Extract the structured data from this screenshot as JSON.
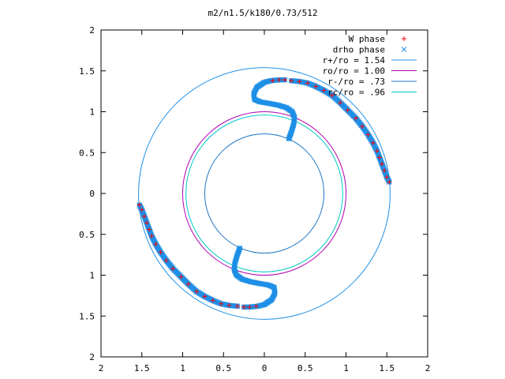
{
  "chart_data": {
    "type": "scatter",
    "title": "m2/n1.5/k180/0.73/512",
    "xlim": [
      -2,
      2
    ],
    "ylim": [
      -2,
      2
    ],
    "xticks": [
      "2",
      "1.5",
      "1",
      "0.5",
      "0",
      "0.5",
      "1",
      "1.5",
      "2"
    ],
    "xtick_values": [
      -2,
      -1.5,
      -1,
      -0.5,
      0,
      0.5,
      1,
      1.5,
      2
    ],
    "yticks": [
      "2",
      "1.5",
      "1",
      "0.5",
      "0",
      "0.5",
      "1",
      "1.5",
      "2"
    ],
    "ytick_values": [
      2,
      1.5,
      1,
      0.5,
      0,
      -0.5,
      -1,
      -1.5,
      -2
    ],
    "grid": false,
    "legend_position": "top-right",
    "series": [
      {
        "name": "W phase",
        "kind": "points",
        "marker": "+",
        "color": "#ff0000",
        "points": [
          [
            1.53,
            0.14
          ],
          [
            1.5,
            0.2
          ],
          [
            1.47,
            0.28
          ],
          [
            1.44,
            0.36
          ],
          [
            1.41,
            0.44
          ],
          [
            1.38,
            0.52
          ],
          [
            1.33,
            0.62
          ],
          [
            1.27,
            0.72
          ],
          [
            1.2,
            0.82
          ],
          [
            1.12,
            0.92
          ],
          [
            1.02,
            1.02
          ],
          [
            0.93,
            1.11
          ],
          [
            0.83,
            1.2
          ],
          [
            0.73,
            1.26
          ],
          [
            0.63,
            1.31
          ],
          [
            0.53,
            1.35
          ],
          [
            0.43,
            1.37
          ],
          [
            0.33,
            1.38
          ],
          [
            0.25,
            1.39
          ],
          [
            0.18,
            1.39
          ],
          [
            0.1,
            1.38
          ],
          [
            -1.53,
            -0.14
          ],
          [
            -1.5,
            -0.2
          ],
          [
            -1.47,
            -0.28
          ],
          [
            -1.44,
            -0.36
          ],
          [
            -1.41,
            -0.44
          ],
          [
            -1.38,
            -0.52
          ],
          [
            -1.33,
            -0.62
          ],
          [
            -1.27,
            -0.72
          ],
          [
            -1.2,
            -0.82
          ],
          [
            -1.12,
            -0.92
          ],
          [
            -1.02,
            -1.02
          ],
          [
            -0.93,
            -1.11
          ],
          [
            -0.83,
            -1.2
          ],
          [
            -0.73,
            -1.26
          ],
          [
            -0.63,
            -1.31
          ],
          [
            -0.53,
            -1.35
          ],
          [
            -0.43,
            -1.37
          ],
          [
            -0.33,
            -1.38
          ],
          [
            -0.25,
            -1.39
          ],
          [
            -0.18,
            -1.39
          ],
          [
            -0.1,
            -1.38
          ]
        ]
      },
      {
        "name": "drho phase",
        "kind": "band",
        "marker": "x",
        "color": "#1f8fe6",
        "points": [
          [
            0.3,
            0.67
          ],
          [
            0.33,
            0.75
          ],
          [
            0.36,
            0.85
          ],
          [
            0.37,
            0.93
          ],
          [
            0.34,
            1.0
          ],
          [
            0.27,
            1.05
          ],
          [
            0.17,
            1.08
          ],
          [
            0.07,
            1.1
          ],
          [
            -0.05,
            1.12
          ],
          [
            -0.12,
            1.15
          ],
          [
            -0.13,
            1.22
          ],
          [
            -0.09,
            1.3
          ],
          [
            0.0,
            1.36
          ],
          [
            0.08,
            1.38
          ],
          [
            0.18,
            1.39
          ],
          [
            0.25,
            1.39
          ]
        ]
      },
      {
        "name": "drho phase",
        "kind": "band",
        "marker": "x",
        "color": "#1f8fe6",
        "points": [
          [
            -0.3,
            -0.67
          ],
          [
            -0.33,
            -0.75
          ],
          [
            -0.36,
            -0.85
          ],
          [
            -0.37,
            -0.93
          ],
          [
            -0.34,
            -1.0
          ],
          [
            -0.27,
            -1.05
          ],
          [
            -0.17,
            -1.08
          ],
          [
            -0.07,
            -1.1
          ],
          [
            0.05,
            -1.12
          ],
          [
            0.12,
            -1.15
          ],
          [
            0.13,
            -1.22
          ],
          [
            0.09,
            -1.3
          ],
          [
            0.0,
            -1.36
          ],
          [
            -0.08,
            -1.38
          ],
          [
            -0.18,
            -1.39
          ],
          [
            -0.25,
            -1.39
          ]
        ]
      },
      {
        "name": "drho phase",
        "kind": "band",
        "marker": "x",
        "color": "#1f8fe6",
        "points": [
          [
            1.53,
            0.14
          ],
          [
            1.5,
            0.2
          ],
          [
            1.47,
            0.28
          ],
          [
            1.44,
            0.36
          ],
          [
            1.41,
            0.44
          ],
          [
            1.38,
            0.52
          ],
          [
            1.33,
            0.62
          ],
          [
            1.27,
            0.72
          ],
          [
            1.2,
            0.82
          ],
          [
            1.12,
            0.92
          ],
          [
            1.02,
            1.02
          ],
          [
            0.93,
            1.11
          ],
          [
            0.83,
            1.2
          ],
          [
            0.73,
            1.26
          ],
          [
            0.63,
            1.31
          ],
          [
            0.53,
            1.35
          ],
          [
            0.43,
            1.37
          ],
          [
            0.33,
            1.38
          ]
        ]
      },
      {
        "name": "drho phase",
        "kind": "band",
        "marker": "x",
        "color": "#1f8fe6",
        "points": [
          [
            -1.53,
            -0.14
          ],
          [
            -1.5,
            -0.2
          ],
          [
            -1.47,
            -0.28
          ],
          [
            -1.44,
            -0.36
          ],
          [
            -1.41,
            -0.44
          ],
          [
            -1.38,
            -0.52
          ],
          [
            -1.33,
            -0.62
          ],
          [
            -1.27,
            -0.72
          ],
          [
            -1.2,
            -0.82
          ],
          [
            -1.12,
            -0.92
          ],
          [
            -1.02,
            -1.02
          ],
          [
            -0.93,
            -1.11
          ],
          [
            -0.83,
            -1.2
          ],
          [
            -0.73,
            -1.26
          ],
          [
            -0.63,
            -1.31
          ],
          [
            -0.53,
            -1.35
          ],
          [
            -0.43,
            -1.37
          ],
          [
            -0.33,
            -1.38
          ]
        ]
      },
      {
        "name": "r+/ro = 1.54",
        "kind": "circle",
        "radius": 1.54,
        "color": "#1f8fe6"
      },
      {
        "name": "ro/ro = 1.00",
        "kind": "circle",
        "radius": 1.0,
        "color": "#b000b0"
      },
      {
        "name": "r-/ro = .73",
        "kind": "circle",
        "radius": 0.73,
        "color": "#1f78c8"
      },
      {
        "name": "rc/ro = .96",
        "kind": "circle",
        "radius": 0.96,
        "color": "#00c8c8"
      }
    ],
    "legend": [
      {
        "label": "W phase",
        "marker": "+",
        "color": "#ff0000"
      },
      {
        "label": "drho phase",
        "marker": "x",
        "color": "#1f8fe6"
      },
      {
        "label": "r+/ro = 1.54",
        "marker": "line",
        "color": "#1f8fe6"
      },
      {
        "label": "ro/ro = 1.00",
        "marker": "line",
        "color": "#b000b0"
      },
      {
        "label": "r-/ro = .73",
        "marker": "line",
        "color": "#1f78c8"
      },
      {
        "label": "rc/ro = .96",
        "marker": "line",
        "color": "#00c8c8"
      }
    ]
  }
}
